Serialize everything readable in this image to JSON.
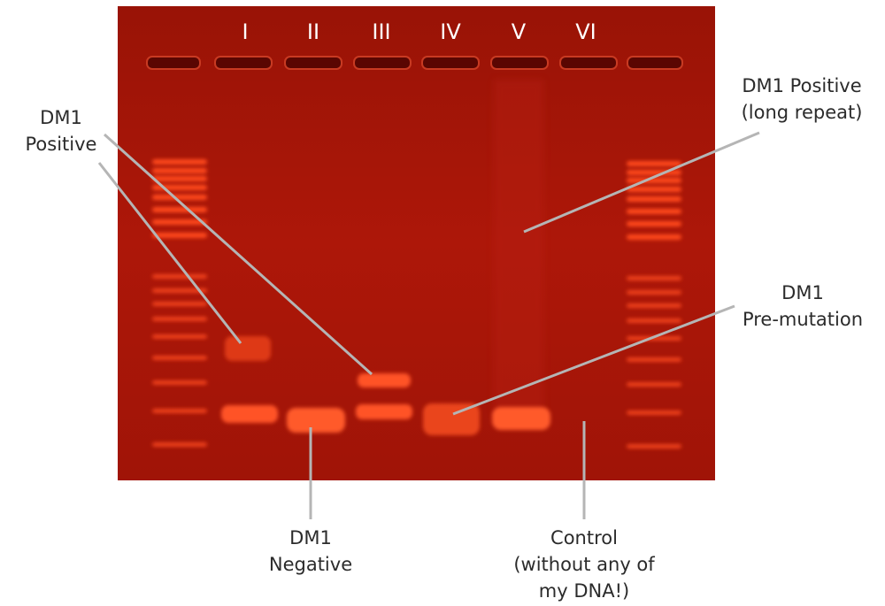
{
  "figure": {
    "lane_labels": [
      "I",
      "II",
      "III",
      "IV",
      "V",
      "VI"
    ],
    "colors": {
      "gel_background": "#a81608",
      "gel_dark": "#8e1105",
      "band": "#ff4a1f",
      "band_bright": "#ff7a48",
      "callout_line": "#b5b5b5",
      "text": "#2b2b2b"
    },
    "annotations": {
      "dm1_positive": {
        "line1": "DM1",
        "line2": "Positive"
      },
      "dm1_positive_long": {
        "line1": "DM1 Positive",
        "line2": "(long repeat)"
      },
      "dm1_premutation": {
        "line1": "DM1",
        "line2": "Pre-mutation"
      },
      "dm1_negative": {
        "line1": "DM1",
        "line2": "Negative"
      },
      "control": {
        "line1": "Control",
        "line2": "(without any of",
        "line3": "my DNA!)"
      }
    }
  }
}
